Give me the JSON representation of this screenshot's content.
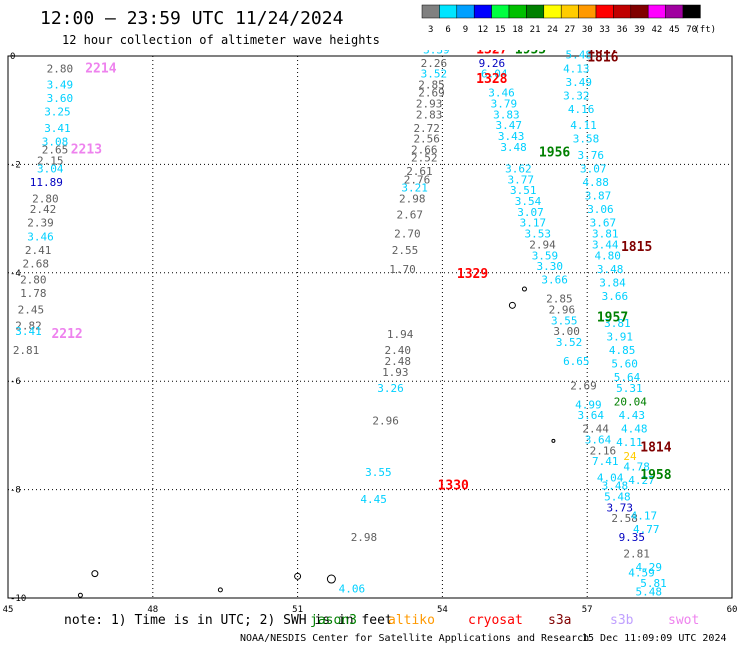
{
  "header": {
    "title": "12:00 — 23:59 UTC 11/24/2024",
    "subtitle": "12 hour collection of altimeter wave heights"
  },
  "color_scale": {
    "unit": "(ft)",
    "bins": [
      {
        "label": "3",
        "color": "#808080"
      },
      {
        "label": "6",
        "color": "#00e5ff"
      },
      {
        "label": "9",
        "color": "#00a0ff"
      },
      {
        "label": "12",
        "color": "#0000ff"
      },
      {
        "label": "15",
        "color": "#00ff40"
      },
      {
        "label": "18",
        "color": "#00c000"
      },
      {
        "label": "21",
        "color": "#008000"
      },
      {
        "label": "24",
        "color": "#ffff00"
      },
      {
        "label": "27",
        "color": "#ffcc00"
      },
      {
        "label": "30",
        "color": "#ff9900"
      },
      {
        "label": "33",
        "color": "#ff0000"
      },
      {
        "label": "36",
        "color": "#c00000"
      },
      {
        "label": "39",
        "color": "#800000"
      },
      {
        "label": "42",
        "color": "#ff00ff"
      },
      {
        "label": "45",
        "color": "#a000a0"
      },
      {
        "label": "70",
        "color": "#000000"
      }
    ]
  },
  "map": {
    "lon_range": [
      45,
      60
    ],
    "lat_range": [
      -10,
      0
    ],
    "x_ticks": [
      "45",
      "48",
      "51",
      "54",
      "57",
      "60"
    ],
    "y_ticks": [
      "0",
      "-2",
      "-4",
      "-6",
      "-8",
      "-10"
    ],
    "track_labels": [
      {
        "text": "2214",
        "lon": 46.6,
        "lat": -0.3,
        "color": "#ee82ee"
      },
      {
        "text": "2213",
        "lon": 46.3,
        "lat": -1.8,
        "color": "#ee82ee"
      },
      {
        "text": "2212",
        "lon": 45.9,
        "lat": -5.2,
        "color": "#ee82ee"
      },
      {
        "text": "1327",
        "lon": 54.7,
        "lat": 0.05,
        "color": "#ff0000"
      },
      {
        "text": "1328",
        "lon": 54.7,
        "lat": -0.5,
        "color": "#ff0000"
      },
      {
        "text": "1329",
        "lon": 54.3,
        "lat": -4.1,
        "color": "#ff0000"
      },
      {
        "text": "1330",
        "lon": 53.9,
        "lat": -8.0,
        "color": "#ff0000"
      },
      {
        "text": "1955",
        "lon": 55.5,
        "lat": 0.05,
        "color": "#008000"
      },
      {
        "text": "1956",
        "lon": 56.0,
        "lat": -1.85,
        "color": "#008000"
      },
      {
        "text": "1957",
        "lon": 57.2,
        "lat": -4.9,
        "color": "#008000"
      },
      {
        "text": "1958",
        "lon": 58.1,
        "lat": -7.8,
        "color": "#008000"
      },
      {
        "text": "1817",
        "lon": 57.0,
        "lat": 0.05,
        "color": "#800000"
      },
      {
        "text": "1816",
        "lon": 57.0,
        "lat": -0.1,
        "color": "#800000"
      },
      {
        "text": "1815",
        "lon": 57.7,
        "lat": -3.6,
        "color": "#800000"
      },
      {
        "text": "1814",
        "lon": 58.1,
        "lat": -7.3,
        "color": "#800000"
      }
    ],
    "wave_values": [
      {
        "text": "2.80",
        "lon": 45.8,
        "lat": -0.3,
        "color": "#606060"
      },
      {
        "text": "3.49",
        "lon": 45.8,
        "lat": -0.6,
        "color": "#00d0ff"
      },
      {
        "text": "3.60",
        "lon": 45.8,
        "lat": -0.85,
        "color": "#00d0ff"
      },
      {
        "text": "3.25",
        "lon": 45.75,
        "lat": -1.1,
        "color": "#00d0ff"
      },
      {
        "text": "3.41",
        "lon": 45.75,
        "lat": -1.4,
        "color": "#00d0ff"
      },
      {
        "text": "3.08",
        "lon": 45.7,
        "lat": -1.65,
        "color": "#00d0ff"
      },
      {
        "text": "2.65",
        "lon": 45.7,
        "lat": -1.8,
        "color": "#606060"
      },
      {
        "text": "2.15",
        "lon": 45.6,
        "lat": -2.0,
        "color": "#606060"
      },
      {
        "text": "3.04",
        "lon": 45.6,
        "lat": -2.15,
        "color": "#00d0ff"
      },
      {
        "text": "11.89",
        "lon": 45.45,
        "lat": -2.4,
        "color": "#0000c0"
      },
      {
        "text": "2.80",
        "lon": 45.5,
        "lat": -2.7,
        "color": "#606060"
      },
      {
        "text": "2.42",
        "lon": 45.45,
        "lat": -2.9,
        "color": "#606060"
      },
      {
        "text": "2.39",
        "lon": 45.4,
        "lat": -3.15,
        "color": "#606060"
      },
      {
        "text": "3.46",
        "lon": 45.4,
        "lat": -3.4,
        "color": "#00d0ff"
      },
      {
        "text": "2.41",
        "lon": 45.35,
        "lat": -3.65,
        "color": "#606060"
      },
      {
        "text": "2.68",
        "lon": 45.3,
        "lat": -3.9,
        "color": "#606060"
      },
      {
        "text": "2.80",
        "lon": 45.25,
        "lat": -4.2,
        "color": "#606060"
      },
      {
        "text": "1.78",
        "lon": 45.25,
        "lat": -4.45,
        "color": "#606060"
      },
      {
        "text": "2.45",
        "lon": 45.2,
        "lat": -4.75,
        "color": "#606060"
      },
      {
        "text": "2.82",
        "lon": 45.15,
        "lat": -5.05,
        "color": "#606060"
      },
      {
        "text": "3.41",
        "lon": 45.15,
        "lat": -5.15,
        "color": "#00d0ff"
      },
      {
        "text": "2.81",
        "lon": 45.1,
        "lat": -5.5,
        "color": "#606060"
      },
      {
        "text": "3.39",
        "lon": 53.6,
        "lat": 0.05,
        "color": "#00d0ff"
      },
      {
        "text": "2.26",
        "lon": 53.55,
        "lat": -0.2,
        "color": "#606060"
      },
      {
        "text": "3.52",
        "lon": 53.55,
        "lat": -0.4,
        "color": "#00d0ff"
      },
      {
        "text": "2.85",
        "lon": 53.5,
        "lat": -0.6,
        "color": "#606060"
      },
      {
        "text": "2.69",
        "lon": 53.5,
        "lat": -0.75,
        "color": "#606060"
      },
      {
        "text": "2.93",
        "lon": 53.45,
        "lat": -0.95,
        "color": "#606060"
      },
      {
        "text": "2.83",
        "lon": 53.45,
        "lat": -1.15,
        "color": "#606060"
      },
      {
        "text": "2.72",
        "lon": 53.4,
        "lat": -1.4,
        "color": "#606060"
      },
      {
        "text": "2.56",
        "lon": 53.4,
        "lat": -1.6,
        "color": "#606060"
      },
      {
        "text": "2.66",
        "lon": 53.35,
        "lat": -1.8,
        "color": "#606060"
      },
      {
        "text": "2.52",
        "lon": 53.35,
        "lat": -1.95,
        "color": "#606060"
      },
      {
        "text": "2.61",
        "lon": 53.25,
        "lat": -2.2,
        "color": "#606060"
      },
      {
        "text": "2.76",
        "lon": 53.2,
        "lat": -2.35,
        "color": "#606060"
      },
      {
        "text": "3.21",
        "lon": 53.15,
        "lat": -2.5,
        "color": "#00d0ff"
      },
      {
        "text": "2.98",
        "lon": 53.1,
        "lat": -2.7,
        "color": "#606060"
      },
      {
        "text": "2.67",
        "lon": 53.05,
        "lat": -3.0,
        "color": "#606060"
      },
      {
        "text": "2.70",
        "lon": 53.0,
        "lat": -3.35,
        "color": "#606060"
      },
      {
        "text": "2.55",
        "lon": 52.95,
        "lat": -3.65,
        "color": "#606060"
      },
      {
        "text": "1.70",
        "lon": 52.9,
        "lat": -4.0,
        "color": "#606060"
      },
      {
        "text": "1.94",
        "lon": 52.85,
        "lat": -5.2,
        "color": "#606060"
      },
      {
        "text": "2.40",
        "lon": 52.8,
        "lat": -5.5,
        "color": "#606060"
      },
      {
        "text": "2.48",
        "lon": 52.8,
        "lat": -5.7,
        "color": "#606060"
      },
      {
        "text": "1.93",
        "lon": 52.75,
        "lat": -5.9,
        "color": "#606060"
      },
      {
        "text": "3.26",
        "lon": 52.65,
        "lat": -6.2,
        "color": "#00d0ff"
      },
      {
        "text": "2.96",
        "lon": 52.55,
        "lat": -6.8,
        "color": "#606060"
      },
      {
        "text": "3.55",
        "lon": 52.4,
        "lat": -7.75,
        "color": "#00d0ff"
      },
      {
        "text": "4.45",
        "lon": 52.3,
        "lat": -8.25,
        "color": "#00d0ff"
      },
      {
        "text": "2.98",
        "lon": 52.1,
        "lat": -8.95,
        "color": "#606060"
      },
      {
        "text": "4.06",
        "lon": 51.85,
        "lat": -9.9,
        "color": "#00d0ff"
      },
      {
        "text": "9.26",
        "lon": 54.75,
        "lat": -0.2,
        "color": "#0000c0"
      },
      {
        "text": "6.04",
        "lon": 54.8,
        "lat": -0.4,
        "color": "#00d0ff"
      },
      {
        "text": "3.46",
        "lon": 54.95,
        "lat": -0.75,
        "color": "#00d0ff"
      },
      {
        "text": "3.79",
        "lon": 55.0,
        "lat": -0.95,
        "color": "#00d0ff"
      },
      {
        "text": "3.83",
        "lon": 55.05,
        "lat": -1.15,
        "color": "#00d0ff"
      },
      {
        "text": "3.47",
        "lon": 55.1,
        "lat": -1.35,
        "color": "#00d0ff"
      },
      {
        "text": "3.43",
        "lon": 55.15,
        "lat": -1.55,
        "color": "#00d0ff"
      },
      {
        "text": "3.48",
        "lon": 55.2,
        "lat": -1.75,
        "color": "#00d0ff"
      },
      {
        "text": "3.62",
        "lon": 55.3,
        "lat": -2.15,
        "color": "#00d0ff"
      },
      {
        "text": "3.77",
        "lon": 55.35,
        "lat": -2.35,
        "color": "#00d0ff"
      },
      {
        "text": "3.51",
        "lon": 55.4,
        "lat": -2.55,
        "color": "#00d0ff"
      },
      {
        "text": "3.54",
        "lon": 55.5,
        "lat": -2.75,
        "color": "#00d0ff"
      },
      {
        "text": "3.07",
        "lon": 55.55,
        "lat": -2.95,
        "color": "#00d0ff"
      },
      {
        "text": "3.17",
        "lon": 55.6,
        "lat": -3.15,
        "color": "#00d0ff"
      },
      {
        "text": "3.53",
        "lon": 55.7,
        "lat": -3.35,
        "color": "#00d0ff"
      },
      {
        "text": "2.94",
        "lon": 55.8,
        "lat": -3.55,
        "color": "#606060"
      },
      {
        "text": "3.59",
        "lon": 55.85,
        "lat": -3.75,
        "color": "#00d0ff"
      },
      {
        "text": "3.30",
        "lon": 55.95,
        "lat": -3.95,
        "color": "#00d0ff"
      },
      {
        "text": "3.66",
        "lon": 56.05,
        "lat": -4.2,
        "color": "#00d0ff"
      },
      {
        "text": "2.85",
        "lon": 56.15,
        "lat": -4.55,
        "color": "#606060"
      },
      {
        "text": "2.96",
        "lon": 56.2,
        "lat": -4.75,
        "color": "#606060"
      },
      {
        "text": "3.55",
        "lon": 56.25,
        "lat": -4.95,
        "color": "#00d0ff"
      },
      {
        "text": "3.00",
        "lon": 56.3,
        "lat": -5.15,
        "color": "#606060"
      },
      {
        "text": "3.52",
        "lon": 56.35,
        "lat": -5.35,
        "color": "#00d0ff"
      },
      {
        "text": "6.65",
        "lon": 56.5,
        "lat": -5.7,
        "color": "#00d0ff"
      },
      {
        "text": "2.69",
        "lon": 56.65,
        "lat": -6.15,
        "color": "#606060"
      },
      {
        "text": "4.99",
        "lon": 56.75,
        "lat": -6.5,
        "color": "#00d0ff"
      },
      {
        "text": "3.64",
        "lon": 56.8,
        "lat": -6.7,
        "color": "#00d0ff"
      },
      {
        "text": "2.44",
        "lon": 56.9,
        "lat": -6.95,
        "color": "#606060"
      },
      {
        "text": "3.64",
        "lon": 56.95,
        "lat": -7.15,
        "color": "#00d0ff"
      },
      {
        "text": "2.16",
        "lon": 57.05,
        "lat": -7.35,
        "color": "#606060"
      },
      {
        "text": "7.41",
        "lon": 57.1,
        "lat": -7.55,
        "color": "#00d0ff"
      },
      {
        "text": "4.04",
        "lon": 57.2,
        "lat": -7.85,
        "color": "#00d0ff"
      },
      {
        "text": "3.48",
        "lon": 57.3,
        "lat": -8.0,
        "color": "#00d0ff"
      },
      {
        "text": "5.48",
        "lon": 57.35,
        "lat": -8.2,
        "color": "#00d0ff"
      },
      {
        "text": "3.73",
        "lon": 57.4,
        "lat": -8.4,
        "color": "#0000c0"
      },
      {
        "text": "2.58",
        "lon": 57.5,
        "lat": -8.6,
        "color": "#606060"
      },
      {
        "text": "9.35",
        "lon": 57.65,
        "lat": -8.95,
        "color": "#0000c0"
      },
      {
        "text": "2.81",
        "lon": 57.75,
        "lat": -9.25,
        "color": "#606060"
      },
      {
        "text": "4.59",
        "lon": 57.85,
        "lat": -9.6,
        "color": "#00d0ff"
      },
      {
        "text": "5.48",
        "lon": 58.0,
        "lat": -9.95,
        "color": "#00d0ff"
      },
      {
        "text": "5.48",
        "lon": 56.55,
        "lat": -0.05,
        "color": "#00d0ff"
      },
      {
        "text": "4.13",
        "lon": 56.5,
        "lat": -0.3,
        "color": "#00d0ff"
      },
      {
        "text": "3.49",
        "lon": 56.55,
        "lat": -0.55,
        "color": "#00d0ff"
      },
      {
        "text": "3.32",
        "lon": 56.5,
        "lat": -0.8,
        "color": "#00d0ff"
      },
      {
        "text": "4.16",
        "lon": 56.6,
        "lat": -1.05,
        "color": "#00d0ff"
      },
      {
        "text": "4.11",
        "lon": 56.65,
        "lat": -1.35,
        "color": "#00d0ff"
      },
      {
        "text": "3.58",
        "lon": 56.7,
        "lat": -1.6,
        "color": "#00d0ff"
      },
      {
        "text": "3.76",
        "lon": 56.8,
        "lat": -1.9,
        "color": "#00d0ff"
      },
      {
        "text": "3.07",
        "lon": 56.85,
        "lat": -2.15,
        "color": "#00d0ff"
      },
      {
        "text": "4.88",
        "lon": 56.9,
        "lat": -2.4,
        "color": "#00d0ff"
      },
      {
        "text": "3.87",
        "lon": 56.95,
        "lat": -2.65,
        "color": "#00d0ff"
      },
      {
        "text": "3.06",
        "lon": 57.0,
        "lat": -2.9,
        "color": "#00d0ff"
      },
      {
        "text": "3.67",
        "lon": 57.05,
        "lat": -3.15,
        "color": "#00d0ff"
      },
      {
        "text": "3.81",
        "lon": 57.1,
        "lat": -3.35,
        "color": "#00d0ff"
      },
      {
        "text": "3.44",
        "lon": 57.1,
        "lat": -3.55,
        "color": "#00d0ff"
      },
      {
        "text": "4.80",
        "lon": 57.15,
        "lat": -3.75,
        "color": "#00d0ff"
      },
      {
        "text": "3.48",
        "lon": 57.2,
        "lat": -4.0,
        "color": "#00d0ff"
      },
      {
        "text": "3.84",
        "lon": 57.25,
        "lat": -4.25,
        "color": "#00d0ff"
      },
      {
        "text": "3.66",
        "lon": 57.3,
        "lat": -4.5,
        "color": "#00d0ff"
      },
      {
        "text": "3.81",
        "lon": 57.35,
        "lat": -5.0,
        "color": "#00d0ff"
      },
      {
        "text": "3.91",
        "lon": 57.4,
        "lat": -5.25,
        "color": "#00d0ff"
      },
      {
        "text": "4.85",
        "lon": 57.45,
        "lat": -5.5,
        "color": "#00d0ff"
      },
      {
        "text": "5.60",
        "lon": 57.5,
        "lat": -5.75,
        "color": "#00d0ff"
      },
      {
        "text": "5.64",
        "lon": 57.55,
        "lat": -6.0,
        "color": "#00d0ff"
      },
      {
        "text": "5.31",
        "lon": 57.6,
        "lat": -6.2,
        "color": "#00d0ff"
      },
      {
        "text": "20.04",
        "lon": 57.55,
        "lat": -6.45,
        "color": "#008000"
      },
      {
        "text": "4.43",
        "lon": 57.65,
        "lat": -6.7,
        "color": "#00d0ff"
      },
      {
        "text": "4.48",
        "lon": 57.7,
        "lat": -6.95,
        "color": "#00d0ff"
      },
      {
        "text": "4.11",
        "lon": 57.6,
        "lat": -7.2,
        "color": "#00d0ff"
      },
      {
        "text": "24",
        "lon": 57.75,
        "lat": -7.45,
        "color": "#ffcc00"
      },
      {
        "text": "4.78",
        "lon": 57.75,
        "lat": -7.65,
        "color": "#00d0ff"
      },
      {
        "text": "4.27",
        "lon": 57.85,
        "lat": -7.9,
        "color": "#00d0ff"
      },
      {
        "text": "4.17",
        "lon": 57.9,
        "lat": -8.55,
        "color": "#00d0ff"
      },
      {
        "text": "4.77",
        "lon": 57.95,
        "lat": -8.8,
        "color": "#00d0ff"
      },
      {
        "text": "4.29",
        "lon": 58.0,
        "lat": -9.5,
        "color": "#00d0ff"
      },
      {
        "text": "5.81",
        "lon": 58.1,
        "lat": -9.8,
        "color": "#00d0ff"
      }
    ]
  },
  "footer": {
    "note": "note: 1) Time is in UTC; 2) SWH is in feet",
    "satellites": [
      {
        "name": "jason3",
        "color": "#008000"
      },
      {
        "name": "altiko",
        "color": "#ff9900"
      },
      {
        "name": "cryosat",
        "color": "#ff0000"
      },
      {
        "name": "s3a",
        "color": "#800000"
      },
      {
        "name": "s3b",
        "color": "#c0a0ff"
      },
      {
        "name": "swot",
        "color": "#ee82ee"
      }
    ],
    "credit": "NOAA/NESDIS Center for Satellite Applications and Research",
    "timestamp": "15 Dec 11:09:09 UTC 2024"
  }
}
